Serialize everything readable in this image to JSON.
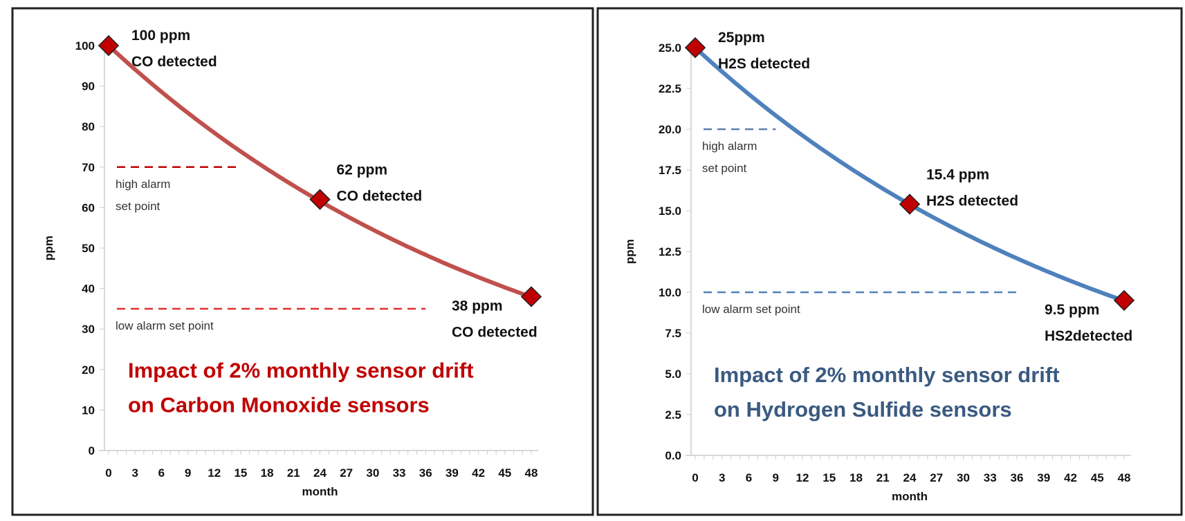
{
  "chart_data": [
    {
      "type": "line",
      "xlabel": "month",
      "ylabel": "ppm",
      "xlim": [
        0,
        48
      ],
      "ylim": [
        0,
        100
      ],
      "x_ticks": [
        "0",
        "3",
        "6",
        "9",
        "12",
        "15",
        "18",
        "21",
        "24",
        "27",
        "30",
        "33",
        "36",
        "39",
        "42",
        "45",
        "48"
      ],
      "y_ticks": [
        "0",
        "10",
        "20",
        "30",
        "40",
        "50",
        "60",
        "70",
        "80",
        "90",
        "100"
      ],
      "grid": false,
      "line_color": "#c0504d",
      "marker_color": "#c00000",
      "title_color": "#c00000",
      "curve": {
        "start_value": 100,
        "monthly_drift_percent": 2
      },
      "points": [
        {
          "x": 0,
          "y": 100,
          "label": [
            "100 ppm",
            "CO detected"
          ]
        },
        {
          "x": 24,
          "y": 62,
          "label": [
            "62 ppm",
            "CO detected"
          ]
        },
        {
          "x": 48,
          "y": 38,
          "label": [
            "38 ppm",
            "CO detected"
          ]
        }
      ],
      "reference_lines": [
        {
          "y": 70,
          "x_range": [
            0,
            15
          ],
          "label": [
            "high alarm",
            "set point"
          ],
          "color": "#c00000"
        },
        {
          "y": 35,
          "x_range": [
            0,
            36
          ],
          "label": [
            "low alarm set point"
          ],
          "color": "#e03030"
        }
      ],
      "title": [
        "Impact of 2% monthly sensor drift",
        "on Carbon Monoxide sensors"
      ]
    },
    {
      "type": "line",
      "xlabel": "month",
      "ylabel": "ppm",
      "xlim": [
        0,
        48
      ],
      "ylim": [
        0,
        25
      ],
      "x_ticks": [
        "0",
        "3",
        "6",
        "9",
        "12",
        "15",
        "18",
        "21",
        "24",
        "27",
        "30",
        "33",
        "36",
        "39",
        "42",
        "45",
        "48"
      ],
      "y_ticks": [
        "0.0",
        "2.5",
        "5.0",
        "7.5",
        "10.0",
        "12.5",
        "15.0",
        "17.5",
        "20.0",
        "22.5",
        "25.0"
      ],
      "grid": false,
      "line_color": "#4f81bd",
      "marker_color": "#c00000",
      "title_color": "#3a5a80",
      "curve": {
        "start_value": 25,
        "monthly_drift_percent": 2
      },
      "points": [
        {
          "x": 0,
          "y": 25,
          "label": [
            "25ppm",
            "H2S detected"
          ]
        },
        {
          "x": 24,
          "y": 15.4,
          "label": [
            "15.4 ppm",
            "H2S detected"
          ]
        },
        {
          "x": 48,
          "y": 9.5,
          "label": [
            "9.5 ppm",
            "HS2detected"
          ]
        }
      ],
      "reference_lines": [
        {
          "y": 20,
          "x_range": [
            0,
            9
          ],
          "label": [
            "high alarm",
            "set point"
          ],
          "color": "#5a7fb0"
        },
        {
          "y": 10,
          "x_range": [
            0,
            36
          ],
          "label": [
            "low alarm set point"
          ],
          "color": "#4f81bd"
        }
      ],
      "title": [
        "Impact of 2% monthly sensor drift",
        "on Hydrogen Sulfide sensors"
      ]
    }
  ]
}
